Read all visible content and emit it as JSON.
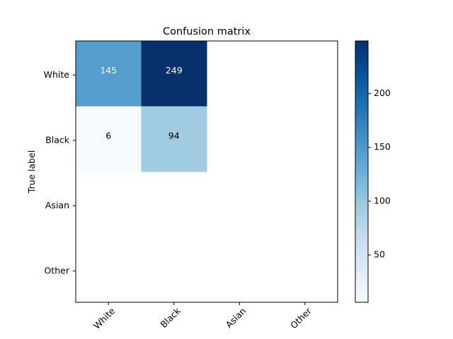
{
  "chart_data": {
    "type": "heatmap",
    "title": "Confusion matrix",
    "ylabel": "True label",
    "xlabel": "",
    "x_categories": [
      "White",
      "Black",
      "Asian",
      "Other"
    ],
    "y_categories": [
      "White",
      "Black",
      "Asian",
      "Other"
    ],
    "matrix": [
      [
        145,
        249,
        null,
        null
      ],
      [
        6,
        94,
        null,
        null
      ],
      [
        null,
        null,
        null,
        null
      ],
      [
        null,
        null,
        null,
        null
      ]
    ],
    "colormap": "Blues",
    "colormap_low": "#f7fbff",
    "colormap_high": "#08306b",
    "value_range": [
      6,
      249
    ],
    "colorbar_ticks": [
      50,
      100,
      150,
      200
    ],
    "text_color_dark": "#000000",
    "text_color_light": "#ffffff",
    "grid": false
  }
}
